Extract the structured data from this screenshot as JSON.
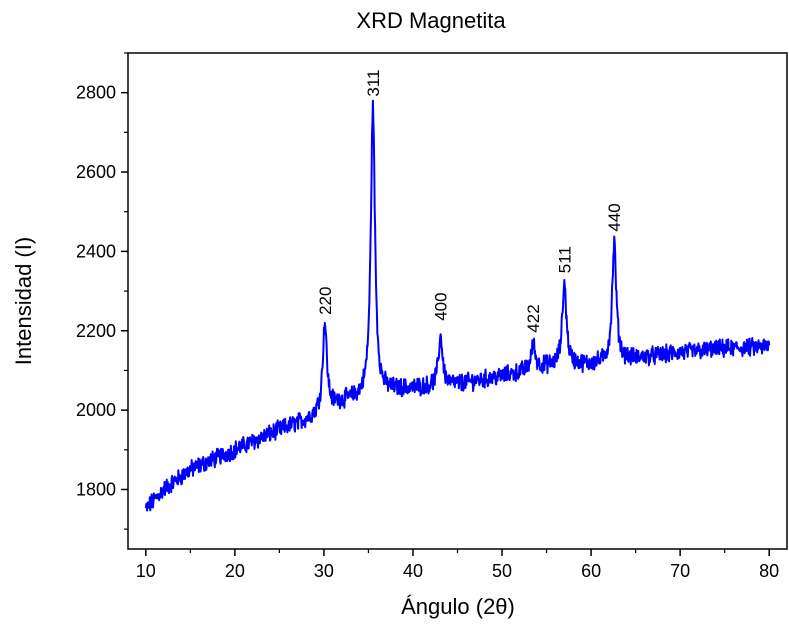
{
  "chart_data": {
    "type": "line",
    "title": "XRD Magnetita",
    "xlabel": "Ángulo (2θ)",
    "ylabel": "Intensidad (I)",
    "xlim": [
      8,
      82
    ],
    "ylim": [
      1650,
      2900
    ],
    "x_ticks": [
      10,
      20,
      30,
      40,
      50,
      60,
      70,
      80
    ],
    "y_ticks": [
      1800,
      2000,
      2200,
      2400,
      2600,
      2800
    ],
    "x_minor_step": 5,
    "y_minor_step": 100,
    "grid": false,
    "legend": "none",
    "line_color": "#0000ff",
    "series": [
      {
        "x_start": 10,
        "x_step": 0.05,
        "x_end": 80,
        "baseline_points": [
          [
            10,
            1750
          ],
          [
            12,
            1800
          ],
          [
            15,
            1850
          ],
          [
            20,
            1900
          ],
          [
            25,
            1950
          ],
          [
            28,
            1975
          ],
          [
            32,
            2020
          ],
          [
            38,
            2050
          ],
          [
            45,
            2065
          ],
          [
            50,
            2085
          ],
          [
            55,
            2110
          ],
          [
            60,
            2115
          ],
          [
            65,
            2130
          ],
          [
            70,
            2145
          ],
          [
            75,
            2155
          ],
          [
            80,
            2160
          ]
        ],
        "peaks": [
          {
            "x": 30.1,
            "peak_y": 2220,
            "label": "220"
          },
          {
            "x": 35.5,
            "peak_y": 2765,
            "label": "311"
          },
          {
            "x": 43.1,
            "peak_y": 2185,
            "label": "400"
          },
          {
            "x": 53.5,
            "peak_y": 2165,
            "label": "422"
          },
          {
            "x": 57.0,
            "peak_y": 2320,
            "label": "511"
          },
          {
            "x": 62.6,
            "peak_y": 2420,
            "label": "440"
          }
        ]
      }
    ],
    "annotations": [
      {
        "text": "220",
        "x": 30.1,
        "y": 2240
      },
      {
        "text": "311",
        "x": 35.5,
        "y": 2790
      },
      {
        "text": "400",
        "x": 43.1,
        "y": 2225
      },
      {
        "text": "422",
        "x": 53.5,
        "y": 2195
      },
      {
        "text": "511",
        "x": 57.0,
        "y": 2345
      },
      {
        "text": "440",
        "x": 62.6,
        "y": 2450
      }
    ]
  }
}
